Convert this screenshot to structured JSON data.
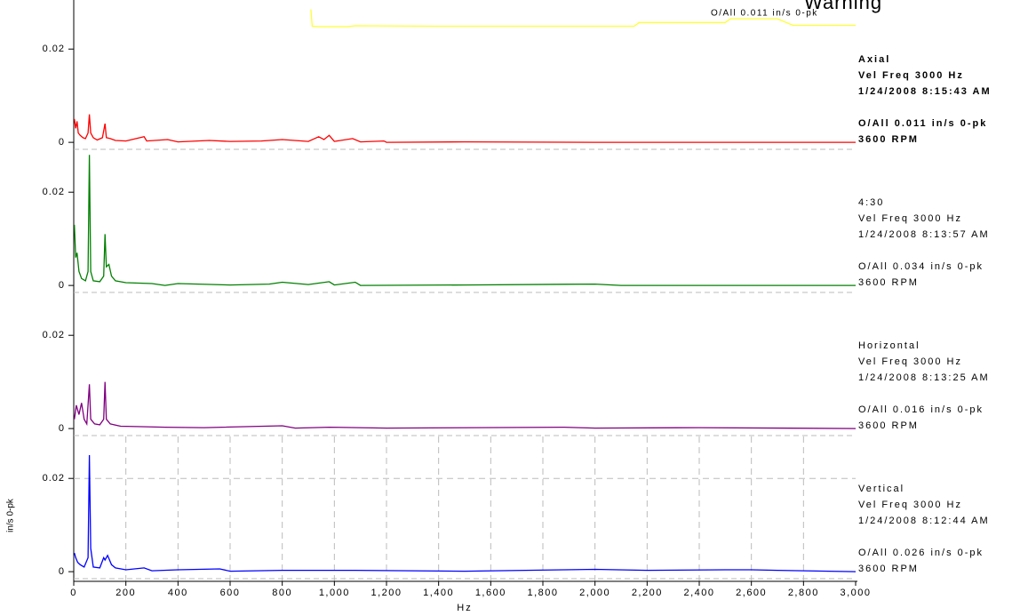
{
  "chart_data": [
    {
      "type": "line",
      "info": [
        "Axial",
        "Vel Freq 3000 Hz",
        "1/24/2008 8:15:43 AM",
        "O/All 0.011 in/s 0-pk",
        "3600 RPM"
      ],
      "bold": true,
      "annotations": [
        "Warning",
        "O/All 0.011 in/s 0-pk"
      ],
      "xlim": [
        0,
        3000
      ],
      "ylim": [
        -0.0015,
        0.029
      ],
      "yticks": [
        0,
        0.02
      ],
      "series": [
        {
          "color": "#ff0000",
          "x": [
            2.5,
            7.5,
            12.5,
            17.5,
            25,
            35,
            45,
            55,
            60,
            65,
            75,
            90,
            110,
            120,
            125,
            140,
            160,
            200,
            270,
            280,
            360,
            400,
            520,
            600,
            720,
            800,
            900,
            940,
            960,
            980,
            1000,
            1070,
            1100,
            1190,
            1200,
            1500,
            2000,
            3000
          ],
          "values": [
            0.005,
            0.003,
            0.0045,
            0.002,
            0.0015,
            0.001,
            0.0008,
            0.002,
            0.006,
            0.002,
            0.001,
            0.0005,
            0.001,
            0.004,
            0.001,
            0.0008,
            0.0004,
            0.0003,
            0.0012,
            0.0003,
            0.0006,
            0.0001,
            0.0004,
            0.0002,
            0.0003,
            0.0006,
            0.0002,
            0.0012,
            0.0006,
            0.0015,
            0.0002,
            0.0008,
            0.0001,
            0.0003,
            0,
            0.0001,
            0,
            0
          ]
        },
        {
          "color": "#ffff33",
          "x": [
            910,
            915,
            940,
            1050,
            1080,
            1400,
            1700,
            1800,
            2150,
            2170,
            2500,
            2520,
            2700,
            2760,
            3000
          ],
          "values": [
            0.0285,
            0.0249,
            0.0248,
            0.0248,
            0.025,
            0.0249,
            0.0249,
            0.0249,
            0.0249,
            0.0257,
            0.0257,
            0.0265,
            0.0265,
            0.0251,
            0.0251
          ]
        }
      ]
    },
    {
      "type": "line",
      "info": [
        "4:30",
        "Vel Freq 3000 Hz",
        "1/24/2008 8:13:57 AM",
        "O/All 0.034 in/s 0-pk",
        "3600 RPM"
      ],
      "bold": false,
      "xlim": [
        0,
        3000
      ],
      "ylim": [
        -0.0015,
        0.029
      ],
      "yticks": [
        0,
        0.02
      ],
      "series": [
        {
          "color": "#008000",
          "x": [
            2.5,
            7.5,
            12.5,
            20,
            30,
            45,
            55,
            60,
            65,
            75,
            100,
            115,
            120,
            125,
            135,
            145,
            160,
            200,
            300,
            350,
            400,
            600,
            750,
            800,
            900,
            980,
            1000,
            1080,
            1100,
            1500,
            2000,
            2100,
            3000
          ],
          "values": [
            0.013,
            0.006,
            0.007,
            0.003,
            0.0015,
            0.001,
            0.003,
            0.028,
            0.003,
            0.001,
            0.0008,
            0.002,
            0.011,
            0.004,
            0.0045,
            0.002,
            0.001,
            0.0006,
            0.0004,
            0,
            0.0004,
            0.0001,
            0.0003,
            0.0007,
            0.0002,
            0.0008,
            0.0001,
            0.0007,
            0,
            0.0001,
            0.0003,
            0,
            0
          ]
        }
      ]
    },
    {
      "type": "line",
      "info": [
        "Horizontal",
        "Vel Freq 3000 Hz",
        "1/24/2008 8:13:25 AM",
        "O/All 0.016 in/s 0-pk",
        "3600 RPM"
      ],
      "bold": false,
      "xlim": [
        0,
        3000
      ],
      "ylim": [
        -0.0015,
        0.029
      ],
      "yticks": [
        0,
        0.02
      ],
      "series": [
        {
          "color": "#800080",
          "x": [
            2.5,
            10,
            20,
            30,
            40,
            50,
            60,
            65,
            80,
            100,
            115,
            120,
            125,
            140,
            180,
            260,
            350,
            500,
            800,
            850,
            980,
            1200,
            1880,
            2000,
            2400,
            3000
          ],
          "values": [
            0.002,
            0.005,
            0.003,
            0.0055,
            0.002,
            0.001,
            0.0095,
            0.002,
            0.001,
            0.0008,
            0.002,
            0.01,
            0.002,
            0.001,
            0.0005,
            0.0004,
            0.0003,
            0.0002,
            0.0006,
            0.0001,
            0.0003,
            0.0001,
            0.0003,
            0.0001,
            0.0002,
            0
          ]
        }
      ]
    },
    {
      "type": "line",
      "info": [
        "Vertical",
        "Vel Freq 3000 Hz",
        "1/24/2008 8:12:44 AM",
        "O/All 0.026 in/s 0-pk",
        "3600 RPM"
      ],
      "bold": false,
      "y_label": "in/s 0-pk",
      "x_label": "Hz",
      "grid": true,
      "xlim": [
        0,
        3000
      ],
      "ylim": [
        -0.0015,
        0.029
      ],
      "yticks": [
        0,
        0.02
      ],
      "xticks": [
        0,
        200,
        400,
        600,
        800,
        {
          "value": 1000,
          "label": "1,000"
        },
        {
          "value": 1200,
          "label": "1,200"
        },
        {
          "value": 1400,
          "label": "1,400"
        },
        {
          "value": 1600,
          "label": "1,600"
        },
        {
          "value": 1800,
          "label": "1,800"
        },
        {
          "value": 2000,
          "label": "2,000"
        },
        {
          "value": 2200,
          "label": "2,200"
        },
        {
          "value": 2400,
          "label": "2,400"
        },
        {
          "value": 2600,
          "label": "2,600"
        },
        {
          "value": 2800,
          "label": "2,800"
        },
        {
          "value": 3000,
          "label": "3,000"
        }
      ],
      "series": [
        {
          "color": "#0000ff",
          "x": [
            2.5,
            7.5,
            15,
            25,
            40,
            55,
            60,
            65,
            75,
            100,
            115,
            120,
            130,
            145,
            160,
            200,
            270,
            300,
            400,
            560,
            600,
            800,
            980,
            1080,
            1500,
            1880,
            2000,
            2200,
            2500,
            2600,
            2700,
            3000
          ],
          "values": [
            0.004,
            0.003,
            0.002,
            0.0015,
            0.001,
            0.003,
            0.025,
            0.005,
            0.001,
            0.0008,
            0.003,
            0.0025,
            0.0035,
            0.0015,
            0.0008,
            0.0004,
            0.0008,
            0.0002,
            0.0004,
            0.0006,
            0.0001,
            0.0003,
            0.0003,
            0.0003,
            0.0001,
            0.0004,
            0.0005,
            0.0003,
            0.0004,
            0.0004,
            0.0003,
            0
          ]
        }
      ]
    }
  ]
}
